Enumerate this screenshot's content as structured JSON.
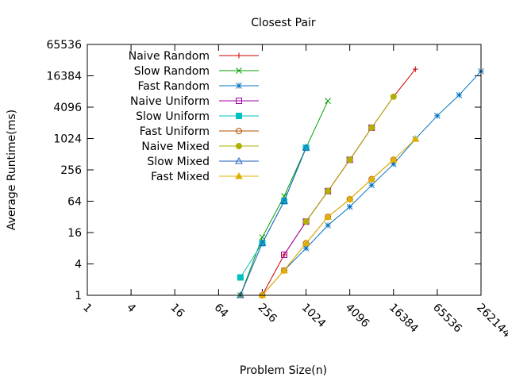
{
  "chart_data": {
    "type": "line",
    "title": "Closest Pair",
    "xlabel": "Problem Size(n)",
    "ylabel": "Average Runtime(ms)",
    "x_scale": "log2",
    "y_scale": "log2",
    "xlim": [
      1,
      262144
    ],
    "ylim": [
      1,
      65536
    ],
    "x_ticks": [
      "1",
      "4",
      "16",
      "64",
      "256",
      "1024",
      "4096",
      "16384",
      "65536",
      "262144"
    ],
    "y_ticks": [
      "1",
      "4",
      "16",
      "64",
      "256",
      "1024",
      "4096",
      "16384",
      "65536"
    ],
    "legend_position": "top-left",
    "grid": false,
    "series": [
      {
        "name": "Naive Random",
        "color": "#cc0000",
        "marker": "plus",
        "x": [
          128,
          256,
          512,
          1024,
          2048,
          4096,
          8192,
          16384,
          32768
        ],
        "y": [
          1,
          1,
          6,
          26,
          100,
          400,
          1650,
          6500,
          22000
        ]
      },
      {
        "name": "Slow Random",
        "color": "#00a000",
        "marker": "cross",
        "x": [
          128,
          256,
          512,
          1024,
          2048
        ],
        "y": [
          1,
          13,
          80,
          680,
          5400
        ]
      },
      {
        "name": "Fast Random",
        "color": "#0070c0",
        "marker": "star",
        "x": [
          512,
          1024,
          2048,
          4096,
          8192,
          16384,
          32768,
          65536,
          131072,
          262144
        ],
        "y": [
          3,
          8,
          22,
          50,
          130,
          330,
          1000,
          2800,
          7000,
          20000
        ]
      },
      {
        "name": "Naive Uniform",
        "color": "#a000a0",
        "marker": "square",
        "x": [
          512,
          1024,
          2048,
          4096,
          8192
        ],
        "y": [
          6,
          26,
          100,
          400,
          1650
        ]
      },
      {
        "name": "Slow Uniform",
        "color": "#00c0c0",
        "marker": "filled-square",
        "x": [
          128,
          256,
          512,
          1024
        ],
        "y": [
          2.2,
          10,
          64,
          680
        ]
      },
      {
        "name": "Fast Uniform",
        "color": "#b05000",
        "marker": "circle",
        "x": [
          256,
          512,
          1024,
          2048,
          4096,
          8192,
          16384
        ],
        "y": [
          1,
          3,
          10,
          32,
          70,
          170,
          400
        ]
      },
      {
        "name": "Naive Mixed",
        "color": "#b0b000",
        "marker": "filled-circle",
        "x": [
          1024,
          2048,
          4096,
          8192,
          16384
        ],
        "y": [
          26,
          100,
          400,
          1650,
          6500
        ]
      },
      {
        "name": "Slow Mixed",
        "color": "#2060c0",
        "marker": "triangle",
        "x": [
          128,
          256,
          512,
          1024
        ],
        "y": [
          1,
          10,
          64,
          680
        ]
      },
      {
        "name": "Fast Mixed",
        "color": "#e0b000",
        "marker": "filled-triangle",
        "x": [
          256,
          512,
          1024,
          2048,
          4096,
          8192,
          16384,
          32768
        ],
        "y": [
          1,
          3,
          10,
          32,
          70,
          170,
          400,
          1000
        ]
      }
    ]
  }
}
